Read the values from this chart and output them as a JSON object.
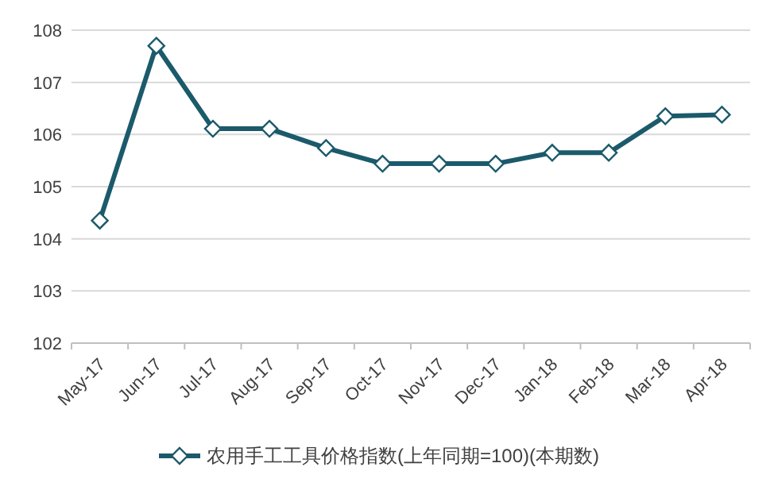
{
  "chart_data": {
    "type": "line",
    "categories": [
      "May-17",
      "Jun-17",
      "Jul-17",
      "Aug-17",
      "Sep-17",
      "Oct-17",
      "Nov-17",
      "Dec-17",
      "Jan-18",
      "Feb-18",
      "Mar-18",
      "Apr-18"
    ],
    "series": [
      {
        "name": "农用手工工具价格指数(上年同期=100)(本期数)",
        "color": "#1b5a6b",
        "values": [
          104.35,
          107.7,
          106.11,
          106.11,
          105.74,
          105.44,
          105.44,
          105.44,
          105.65,
          105.65,
          106.35,
          106.38
        ]
      }
    ],
    "ylim": [
      102,
      108
    ],
    "yticks": [
      102,
      103,
      104,
      105,
      106,
      107,
      108
    ],
    "grid": "y",
    "legend": "bottom",
    "marker": "diamond",
    "line_style": "solid"
  }
}
